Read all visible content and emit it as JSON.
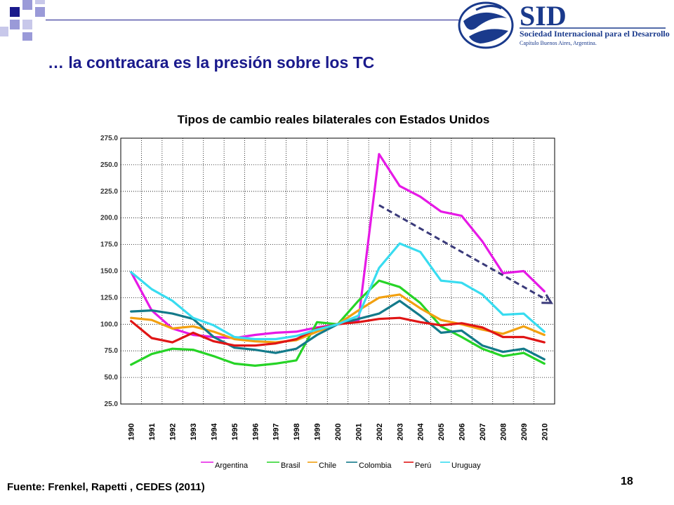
{
  "header": {
    "title": "… la contracara es la presión sobre los TC",
    "logo": {
      "wordmark": "SID",
      "line1": "Sociedad Internacional para el Desarrollo",
      "line2": "Capítulo Buenos Aires, Argentina."
    },
    "accent_color": "#1a1a8c"
  },
  "chart_data": {
    "type": "line",
    "title": "Tipos de cambio reales bilaterales con Estados Unidos",
    "xlabel": "",
    "ylabel": "",
    "ylim": [
      25,
      275
    ],
    "yticks": [
      "25.0",
      "50.0",
      "75.0",
      "100.0",
      "125.0",
      "150.0",
      "175.0",
      "200.0",
      "225.0",
      "250.0",
      "275.0"
    ],
    "x": [
      "1990",
      "1991",
      "1992",
      "1993",
      "1994",
      "1995",
      "1996",
      "1997",
      "1998",
      "1999",
      "2000",
      "2001",
      "2002",
      "2003",
      "2004",
      "2005",
      "2006",
      "2007",
      "2008",
      "2009",
      "2010"
    ],
    "grid": true,
    "legend_position": "bottom",
    "series": [
      {
        "name": "Argentina",
        "color": "#e619e6",
        "values": [
          149,
          113,
          96,
          90,
          88,
          87,
          90,
          92,
          93,
          97,
          100,
          103,
          260,
          230,
          220,
          206,
          202,
          178,
          148,
          150,
          131
        ]
      },
      {
        "name": "Brasil",
        "color": "#26d426",
        "values": [
          62,
          72,
          77,
          76,
          70,
          63,
          61,
          63,
          66,
          102,
          100,
          122,
          141,
          135,
          120,
          98,
          88,
          77,
          70,
          73,
          63
        ]
      },
      {
        "name": "Chile",
        "color": "#f2a010",
        "values": [
          106,
          104,
          96,
          98,
          93,
          86,
          84,
          83,
          85,
          93,
          100,
          113,
          125,
          128,
          115,
          104,
          100,
          95,
          91,
          98,
          90
        ]
      },
      {
        "name": "Colombia",
        "color": "#137a8a",
        "values": [
          112,
          113,
          110,
          105,
          88,
          78,
          76,
          73,
          77,
          90,
          100,
          105,
          110,
          122,
          108,
          92,
          94,
          80,
          74,
          77,
          67
        ]
      },
      {
        "name": "Perú",
        "color": "#e01515",
        "values": [
          103,
          87,
          83,
          92,
          84,
          80,
          80,
          82,
          86,
          96,
          100,
          102,
          105,
          106,
          102,
          99,
          101,
          97,
          88,
          88,
          83
        ]
      },
      {
        "name": "Uruguay",
        "color": "#38dcf0",
        "values": [
          149,
          133,
          122,
          106,
          99,
          88,
          86,
          86,
          89,
          95,
          100,
          108,
          153,
          176,
          168,
          141,
          139,
          128,
          109,
          110,
          93
        ]
      }
    ],
    "annotation": {
      "type": "dashed-arrow",
      "color": "#3a3a7a",
      "from": {
        "x": "2002",
        "y": 212
      },
      "to": {
        "x": "2010",
        "y": 120
      }
    }
  },
  "footer": {
    "source": "Fuente: Frenkel, Rapetti , CEDES (2011)",
    "page_number": "18"
  }
}
